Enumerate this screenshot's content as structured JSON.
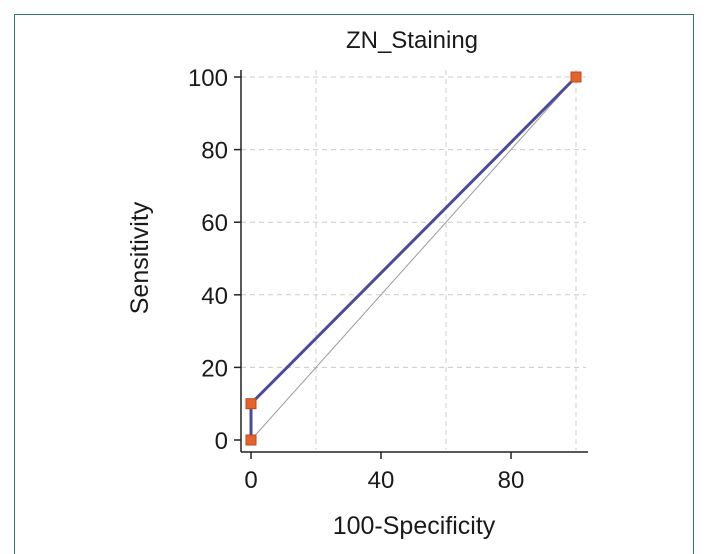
{
  "chart_data": {
    "type": "line",
    "title": "ZN_Staining",
    "xlabel": "100-Specificity",
    "ylabel": "Sensitivity",
    "xlim": [
      0,
      100
    ],
    "ylim": [
      0,
      100
    ],
    "xticks": [
      0,
      40,
      80
    ],
    "yticks": [
      0,
      20,
      40,
      60,
      80,
      100
    ],
    "grid": true,
    "legend": "none",
    "series": [
      {
        "x": [
          0,
          0,
          100
        ],
        "y": [
          0,
          10,
          100
        ],
        "color": "#4b4b9a",
        "marker": "square",
        "marker_color": "#e8632b"
      }
    ],
    "reference_line": {
      "x": [
        0,
        100
      ],
      "y": [
        0,
        100
      ],
      "color": "#9a9a9a"
    }
  },
  "colors": {
    "frame": "#2e7d5a",
    "grid": "#cccccc"
  }
}
